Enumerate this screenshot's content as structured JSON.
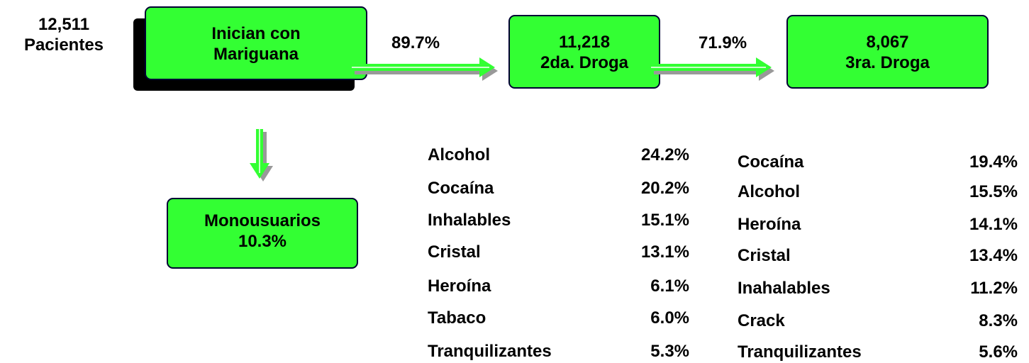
{
  "start": {
    "lines": [
      "12,511",
      "Pacientes"
    ]
  },
  "nodes": [
    {
      "lines": [
        "Inician con",
        "Mariguana"
      ]
    },
    {
      "lines": [
        "11,218",
        "2da. Droga"
      ]
    },
    {
      "lines": [
        "8,067",
        "3ra. Droga"
      ]
    },
    {
      "lines": [
        "Monousuarios",
        "10.3%"
      ]
    }
  ],
  "transitions": [
    "89.7%",
    "71.9%"
  ],
  "tables": [
    {
      "rows": [
        [
          "Alcohol",
          "24.2%"
        ],
        [
          "Cocaína",
          "20.2%"
        ],
        [
          "Inhalables",
          "15.1%"
        ],
        [
          "Cristal",
          "13.1%"
        ],
        [
          "Heroína",
          "6.1%"
        ],
        [
          "Tabaco",
          "6.0%"
        ],
        [
          "Tranquilizantes",
          "5.3%"
        ]
      ]
    },
    {
      "rows": [
        [
          "Cocaína",
          "19.4%"
        ],
        [
          "Alcohol",
          "15.5%"
        ],
        [
          "Heroína",
          "14.1%"
        ],
        [
          "Cristal",
          "13.4%"
        ],
        [
          "Inahalables",
          "11.2%"
        ],
        [
          "Crack",
          "8.3%"
        ],
        [
          "Tranquilizantes",
          "5.6%"
        ]
      ]
    }
  ]
}
